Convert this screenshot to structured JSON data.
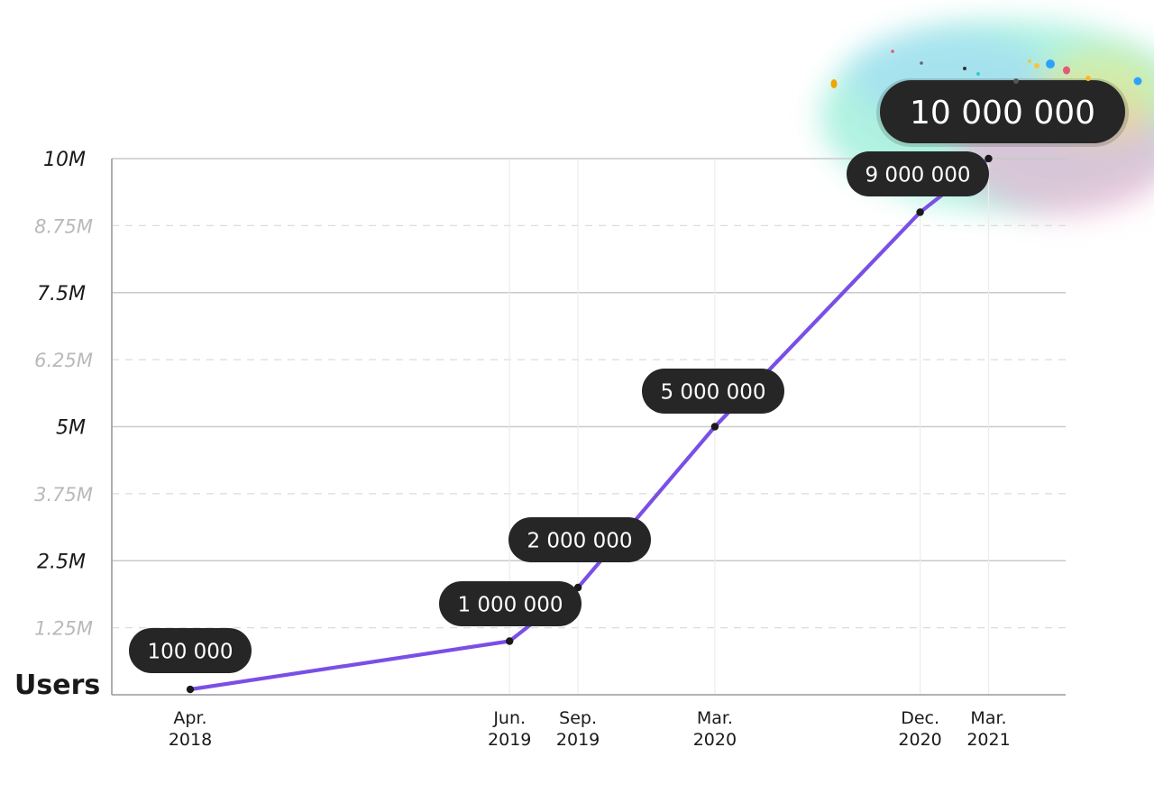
{
  "chart_data": {
    "type": "line",
    "title": "",
    "ylabel": "Users",
    "xlabel": "",
    "ylim": [
      0,
      10000000
    ],
    "yticks": [
      {
        "value": 10000000,
        "label": "10M",
        "major": true
      },
      {
        "value": 8750000,
        "label": "8.75M",
        "major": false
      },
      {
        "value": 7500000,
        "label": "7.5M",
        "major": true
      },
      {
        "value": 6250000,
        "label": "6.25M",
        "major": false
      },
      {
        "value": 5000000,
        "label": "5M",
        "major": true
      },
      {
        "value": 3750000,
        "label": "3.75M",
        "major": false
      },
      {
        "value": 2500000,
        "label": "2.5M",
        "major": true
      },
      {
        "value": 1250000,
        "label": "1.25M",
        "major": false
      }
    ],
    "points": [
      {
        "date": "2018-04",
        "month_index": 0,
        "x_label": [
          "Apr.",
          "2018"
        ],
        "value": 100000,
        "label": "100 000",
        "gridline": false
      },
      {
        "date": "2019-06",
        "month_index": 14,
        "x_label": [
          "Jun.",
          "2019"
        ],
        "value": 1000000,
        "label": "1 000 000",
        "gridline": true
      },
      {
        "date": "2019-09",
        "month_index": 17,
        "x_label": [
          "Sep.",
          "2019"
        ],
        "value": 2000000,
        "label": "2 000 000",
        "gridline": true
      },
      {
        "date": "2020-03",
        "month_index": 23,
        "x_label": [
          "Mar.",
          "2020"
        ],
        "value": 5000000,
        "label": "5 000 000",
        "gridline": true
      },
      {
        "date": "2020-12",
        "month_index": 32,
        "x_label": [
          "Dec.",
          "2020"
        ],
        "value": 9000000,
        "label": "9 000 000",
        "gridline": true
      },
      {
        "date": "2021-03",
        "month_index": 35,
        "x_label": [
          "Mar.",
          "2021"
        ],
        "value": 10000000,
        "label": "10 000 000",
        "gridline": true,
        "highlight": true
      }
    ],
    "colors": {
      "line": "#7a4fe6",
      "pill": "#262626",
      "pill_text": "#ffffff",
      "grid_major": "#c9c9c9",
      "grid_minor": "#dcdcdc",
      "axis": "#9a9a9a",
      "vgrid": "#ececec",
      "marker": "#1a1a1a"
    }
  }
}
